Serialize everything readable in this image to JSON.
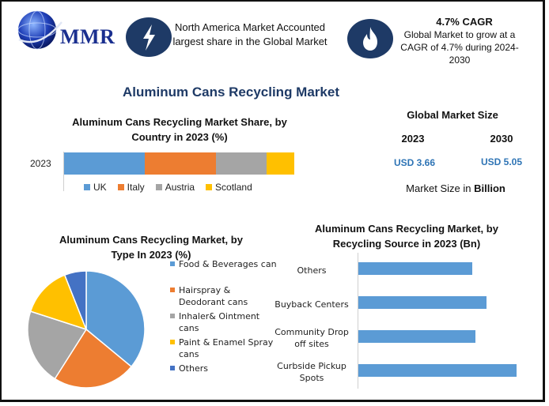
{
  "logo": {
    "text": "MMR"
  },
  "header": {
    "card1": {
      "text": "North America Market Accounted largest share in the Global Market",
      "icon": "lightning-icon"
    },
    "card2": {
      "title": "4.7% CAGR",
      "text": "Global Market to grow at a CAGR of 4.7% during 2024-2030",
      "icon": "flame-icon"
    }
  },
  "main_title": "Aluminum Cans Recycling Market",
  "market_size": {
    "title": "Global Market Size",
    "year1": "2023",
    "value1": "USD 3.66",
    "year2": "2030",
    "value2": "USD 5.05",
    "note_prefix": "Market Size in ",
    "note_unit": "Billion"
  },
  "colors": {
    "blue": "#5b9bd5",
    "orange": "#ed7d31",
    "gray": "#a5a5a5",
    "yellow": "#ffc000",
    "dark_blue": "#4472c4",
    "navy": "#1e3a66"
  },
  "chart_data": [
    {
      "type": "bar",
      "stacked": true,
      "orientation": "horizontal",
      "title": "Aluminum Cans Recycling  Market Share, by Country in 2023 (%)",
      "categories": [
        "2023"
      ],
      "series": [
        {
          "name": "UK",
          "values": [
            35
          ],
          "color": "#5b9bd5"
        },
        {
          "name": "Italy",
          "values": [
            31
          ],
          "color": "#ed7d31"
        },
        {
          "name": "Austria",
          "values": [
            22
          ],
          "color": "#a5a5a5"
        },
        {
          "name": "Scotland",
          "values": [
            12
          ],
          "color": "#ffc000"
        }
      ],
      "legend": "bottom"
    },
    {
      "type": "pie",
      "title": "Aluminum Cans Recycling  Market, by Type In 2023 (%)",
      "labels": [
        "Food & Beverages can",
        "Hairspray & Deodorant cans",
        "Inhaler& Ointment cans",
        "Paint & Enamel Spray cans",
        "Others"
      ],
      "values": [
        36,
        23,
        21,
        14,
        6
      ],
      "colors": [
        "#5b9bd5",
        "#ed7d31",
        "#a5a5a5",
        "#ffc000",
        "#4472c4"
      ],
      "legend": "right"
    },
    {
      "type": "bar",
      "orientation": "horizontal",
      "title": "Aluminum Cans Recycling  Market, by Recycling Source in 2023 (Bn)",
      "categories": [
        "Others",
        "Buyback Centers",
        "Community Drop off sites",
        "Curbside Pickup Spots"
      ],
      "values": [
        0.72,
        0.81,
        0.74,
        1.0
      ],
      "color": "#5b9bd5",
      "xlim": [
        0,
        1.0
      ]
    }
  ]
}
